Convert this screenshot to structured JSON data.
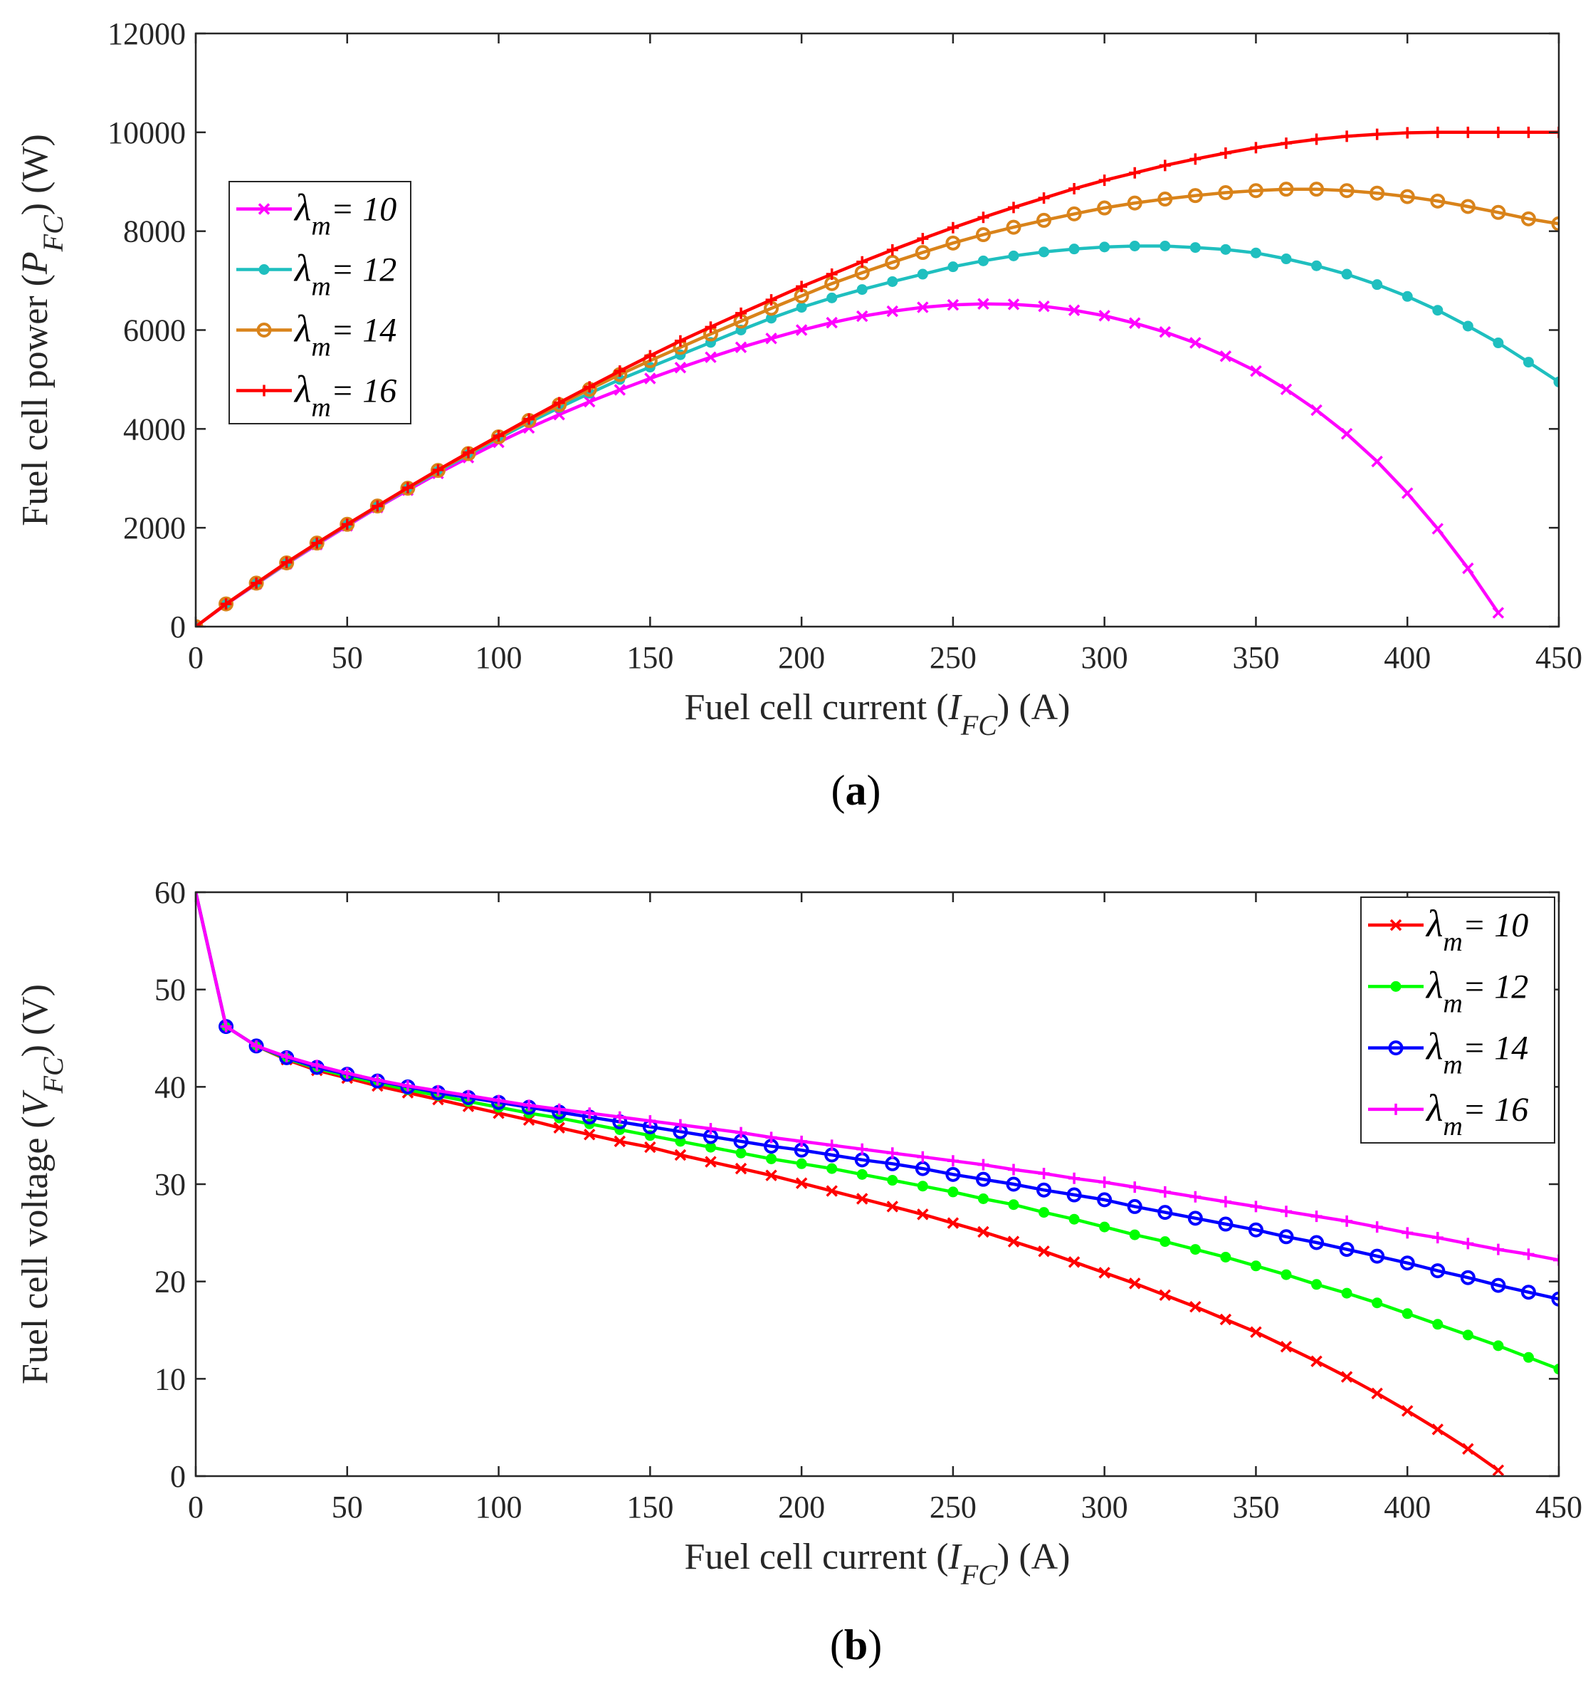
{
  "colors": {
    "axis": "#262626",
    "plot_a": [
      "#ff00ff",
      "#1fbfbf",
      "#d9831a",
      "#ff0000"
    ],
    "plot_b": [
      "#ff0000",
      "#00ff00",
      "#0000ff",
      "#ff00ff"
    ]
  },
  "chart_data": [
    {
      "type": "line",
      "panel_label": "(a)",
      "panel_text": "a",
      "title": "",
      "xlabel": {
        "prefix": "Fuel cell current (",
        "var": "I",
        "sub": "FC",
        "suffix": ") (A)"
      },
      "ylabel": {
        "prefix": "Fuel cell power (",
        "var": "P",
        "sub": "FC",
        "suffix": ") (W)"
      },
      "xlim": [
        0,
        450
      ],
      "ylim": [
        0,
        12000
      ],
      "xticks": [
        "0",
        "50",
        "100",
        "150",
        "200",
        "250",
        "300",
        "350",
        "400",
        "450"
      ],
      "yticks": [
        "0",
        "2000",
        "4000",
        "6000",
        "8000",
        "10000",
        "12000"
      ],
      "legend_position": "upper-left",
      "legend_symbol": "λ",
      "legend_sub": "m",
      "series": [
        {
          "name": "λm = 10",
          "value_label": "= 10",
          "marker": "x",
          "x": [
            0,
            10,
            20,
            30,
            40,
            50,
            60,
            70,
            80,
            90,
            100,
            110,
            120,
            130,
            140,
            150,
            160,
            170,
            180,
            190,
            200,
            210,
            220,
            230,
            240,
            250,
            260,
            270,
            280,
            290,
            300,
            310,
            320,
            330,
            340,
            350,
            360,
            370,
            380,
            390,
            400,
            410,
            420,
            430
          ],
          "y": [
            0,
            450,
            860,
            1270,
            1660,
            2040,
            2410,
            2760,
            3100,
            3420,
            3730,
            4020,
            4290,
            4550,
            4790,
            5020,
            5240,
            5450,
            5650,
            5830,
            6000,
            6150,
            6280,
            6380,
            6460,
            6510,
            6530,
            6520,
            6480,
            6400,
            6290,
            6140,
            5960,
            5740,
            5470,
            5170,
            4800,
            4380,
            3900,
            3340,
            2700,
            1980,
            1180,
            280
          ]
        },
        {
          "name": "λm = 12",
          "value_label": "= 12",
          "marker": "dot",
          "x": [
            0,
            10,
            20,
            30,
            40,
            50,
            60,
            70,
            80,
            90,
            100,
            110,
            120,
            130,
            140,
            150,
            160,
            170,
            180,
            190,
            200,
            210,
            220,
            230,
            240,
            250,
            260,
            270,
            280,
            290,
            300,
            310,
            320,
            330,
            340,
            350,
            360,
            370,
            380,
            390,
            400,
            410,
            420,
            430,
            440,
            450
          ],
          "y": [
            0,
            460,
            870,
            1280,
            1680,
            2060,
            2430,
            2790,
            3140,
            3480,
            3810,
            4130,
            4430,
            4720,
            5000,
            5250,
            5500,
            5750,
            6000,
            6240,
            6460,
            6650,
            6820,
            6980,
            7130,
            7280,
            7400,
            7500,
            7580,
            7640,
            7680,
            7700,
            7700,
            7670,
            7630,
            7560,
            7440,
            7300,
            7130,
            6920,
            6680,
            6400,
            6080,
            5740,
            5350,
            4950
          ]
        },
        {
          "name": "λm = 14",
          "value_label": "= 14",
          "marker": "circle",
          "x": [
            0,
            10,
            20,
            30,
            40,
            50,
            60,
            70,
            80,
            90,
            100,
            110,
            120,
            130,
            140,
            150,
            160,
            170,
            180,
            190,
            200,
            210,
            220,
            230,
            240,
            250,
            260,
            270,
            280,
            290,
            300,
            310,
            320,
            330,
            340,
            350,
            360,
            370,
            380,
            390,
            400,
            410,
            420,
            430,
            440,
            450
          ],
          "y": [
            0,
            460,
            880,
            1290,
            1690,
            2070,
            2440,
            2800,
            3160,
            3500,
            3840,
            4170,
            4490,
            4800,
            5100,
            5380,
            5650,
            5920,
            6180,
            6440,
            6690,
            6940,
            7160,
            7370,
            7570,
            7760,
            7930,
            8080,
            8220,
            8350,
            8470,
            8570,
            8650,
            8720,
            8780,
            8820,
            8850,
            8850,
            8820,
            8770,
            8700,
            8610,
            8500,
            8380,
            8250,
            8150
          ]
        },
        {
          "name": "λm = 16",
          "value_label": "= 16",
          "marker": "plus",
          "x": [
            0,
            10,
            20,
            30,
            40,
            50,
            60,
            70,
            80,
            90,
            100,
            110,
            120,
            130,
            140,
            150,
            160,
            170,
            180,
            190,
            200,
            210,
            220,
            230,
            240,
            250,
            260,
            270,
            280,
            290,
            300,
            310,
            320,
            330,
            340,
            350,
            360,
            370,
            380,
            390,
            400,
            410,
            420,
            430,
            440,
            450
          ],
          "y": [
            0,
            460,
            880,
            1300,
            1690,
            2070,
            2440,
            2810,
            3170,
            3520,
            3860,
            4200,
            4530,
            4850,
            5170,
            5480,
            5780,
            6060,
            6340,
            6610,
            6880,
            7130,
            7380,
            7620,
            7850,
            8070,
            8280,
            8480,
            8670,
            8860,
            9030,
            9180,
            9330,
            9460,
            9580,
            9690,
            9780,
            9860,
            9920,
            9960,
            9990,
            10000,
            10000,
            10000,
            10000,
            10000
          ]
        }
      ]
    },
    {
      "type": "line",
      "panel_label": "(b)",
      "panel_text": "b",
      "title": "",
      "xlabel": {
        "prefix": "Fuel cell current (",
        "var": "I",
        "sub": "FC",
        "suffix": ") (A)"
      },
      "ylabel": {
        "prefix": "Fuel cell voltage (",
        "var": "V",
        "sub": "FC",
        "suffix": ") (V)"
      },
      "xlim": [
        0,
        450
      ],
      "ylim": [
        0,
        60
      ],
      "xticks": [
        "0",
        "50",
        "100",
        "150",
        "200",
        "250",
        "300",
        "350",
        "400",
        "450"
      ],
      "yticks": [
        "0",
        "10",
        "20",
        "30",
        "40",
        "50",
        "60"
      ],
      "legend_position": "upper-right",
      "legend_symbol": "λ",
      "legend_sub": "m",
      "series": [
        {
          "name": "λm = 10",
          "value_label": "= 10",
          "marker": "x",
          "x": [
            0,
            10,
            20,
            30,
            40,
            50,
            60,
            70,
            80,
            90,
            100,
            110,
            120,
            130,
            140,
            150,
            160,
            170,
            180,
            190,
            200,
            210,
            220,
            230,
            240,
            250,
            260,
            270,
            280,
            290,
            300,
            310,
            320,
            330,
            340,
            350,
            360,
            370,
            380,
            390,
            400,
            410,
            420,
            430
          ],
          "y": [
            60,
            46.2,
            44.2,
            42.8,
            41.7,
            40.9,
            40.1,
            39.4,
            38.7,
            38.0,
            37.3,
            36.6,
            35.8,
            35.1,
            34.4,
            33.8,
            33.0,
            32.3,
            31.6,
            30.9,
            30.1,
            29.3,
            28.5,
            27.7,
            26.9,
            26.0,
            25.1,
            24.1,
            23.1,
            22.0,
            20.9,
            19.8,
            18.6,
            17.4,
            16.1,
            14.8,
            13.3,
            11.8,
            10.2,
            8.5,
            6.7,
            4.8,
            2.8,
            0.6
          ],
          "draw_markers_from": 1
        },
        {
          "name": "λm = 12",
          "value_label": "= 12",
          "marker": "dot",
          "x": [
            0,
            10,
            20,
            30,
            40,
            50,
            60,
            70,
            80,
            90,
            100,
            110,
            120,
            130,
            140,
            150,
            160,
            170,
            180,
            190,
            200,
            210,
            220,
            230,
            240,
            250,
            260,
            270,
            280,
            290,
            300,
            310,
            320,
            330,
            340,
            350,
            360,
            370,
            380,
            390,
            400,
            410,
            420,
            430,
            440,
            450
          ],
          "y": [
            60,
            46.2,
            44.2,
            42.9,
            41.9,
            41.1,
            40.4,
            39.7,
            39.1,
            38.5,
            37.9,
            37.3,
            36.8,
            36.2,
            35.6,
            35.0,
            34.4,
            33.8,
            33.2,
            32.6,
            32.1,
            31.6,
            31.0,
            30.4,
            29.8,
            29.2,
            28.5,
            27.9,
            27.1,
            26.4,
            25.6,
            24.8,
            24.1,
            23.3,
            22.5,
            21.6,
            20.7,
            19.7,
            18.8,
            17.8,
            16.7,
            15.6,
            14.5,
            13.4,
            12.2,
            11.0
          ],
          "draw_markers_from": 1
        },
        {
          "name": "λm = 14",
          "value_label": "= 14",
          "marker": "circle",
          "x": [
            0,
            10,
            20,
            30,
            40,
            50,
            60,
            70,
            80,
            90,
            100,
            110,
            120,
            130,
            140,
            150,
            160,
            170,
            180,
            190,
            200,
            210,
            220,
            230,
            240,
            250,
            260,
            270,
            280,
            290,
            300,
            310,
            320,
            330,
            340,
            350,
            360,
            370,
            380,
            390,
            400,
            410,
            420,
            430,
            440,
            450
          ],
          "y": [
            60,
            46.2,
            44.2,
            43.0,
            42.0,
            41.3,
            40.6,
            40.0,
            39.4,
            38.9,
            38.4,
            37.9,
            37.4,
            36.9,
            36.4,
            35.9,
            35.4,
            34.9,
            34.4,
            33.9,
            33.5,
            33.0,
            32.5,
            32.1,
            31.6,
            31.0,
            30.5,
            30.0,
            29.4,
            28.9,
            28.4,
            27.7,
            27.1,
            26.5,
            25.9,
            25.3,
            24.6,
            24.0,
            23.3,
            22.6,
            21.9,
            21.1,
            20.4,
            19.6,
            18.9,
            18.2
          ],
          "draw_markers_from": 1
        },
        {
          "name": "λm = 16",
          "value_label": "= 16",
          "marker": "plus",
          "x": [
            0,
            10,
            20,
            30,
            40,
            50,
            60,
            70,
            80,
            90,
            100,
            110,
            120,
            130,
            140,
            150,
            160,
            170,
            180,
            190,
            200,
            210,
            220,
            230,
            240,
            250,
            260,
            270,
            280,
            290,
            300,
            310,
            320,
            330,
            340,
            350,
            360,
            370,
            380,
            390,
            400,
            410,
            420,
            430,
            440,
            450
          ],
          "y": [
            60,
            46.2,
            44.2,
            43.1,
            42.2,
            41.4,
            40.7,
            40.1,
            39.6,
            39.1,
            38.6,
            38.1,
            37.7,
            37.3,
            36.9,
            36.5,
            36.1,
            35.7,
            35.3,
            34.8,
            34.4,
            34.0,
            33.6,
            33.2,
            32.8,
            32.4,
            32.0,
            31.5,
            31.1,
            30.6,
            30.2,
            29.7,
            29.2,
            28.7,
            28.2,
            27.7,
            27.2,
            26.7,
            26.2,
            25.6,
            25.0,
            24.5,
            23.9,
            23.3,
            22.8,
            22.2
          ],
          "draw_markers_from": 1
        }
      ]
    }
  ]
}
